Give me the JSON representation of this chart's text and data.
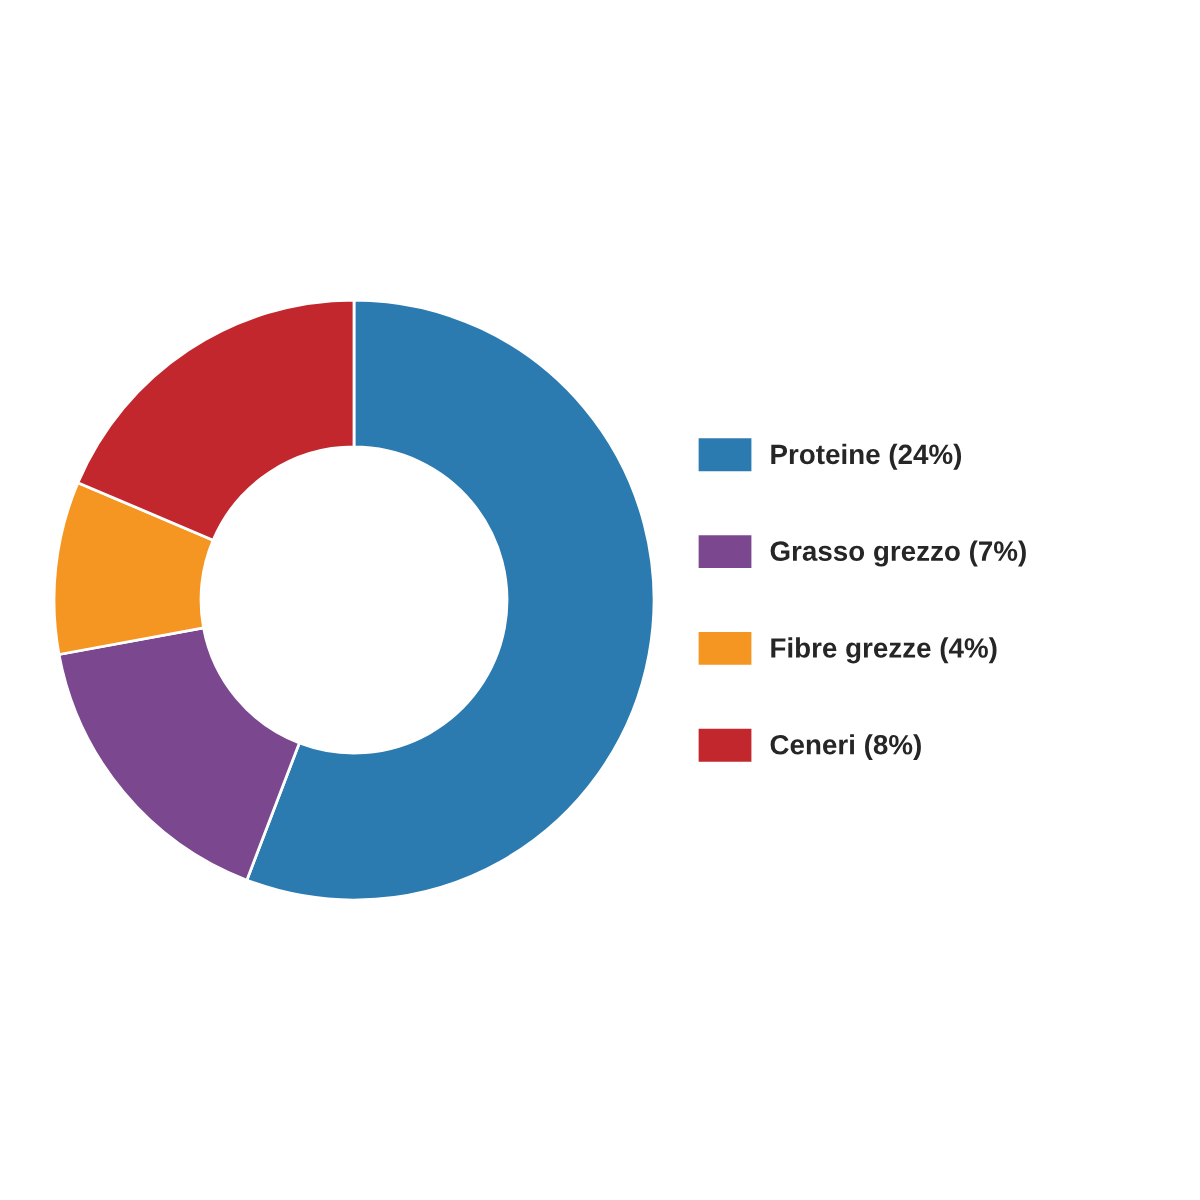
{
  "chart_data": {
    "type": "donut",
    "categories": [
      "Proteine (24%)",
      "Grasso grezzo (7%)",
      "Fibre grezze (4%)",
      "Ceneri (8%)"
    ],
    "values": [
      24,
      7,
      4,
      8
    ],
    "colors": [
      "#2b7bb0",
      "#7b4890",
      "#f59622",
      "#c1272d"
    ],
    "legend": "right"
  }
}
